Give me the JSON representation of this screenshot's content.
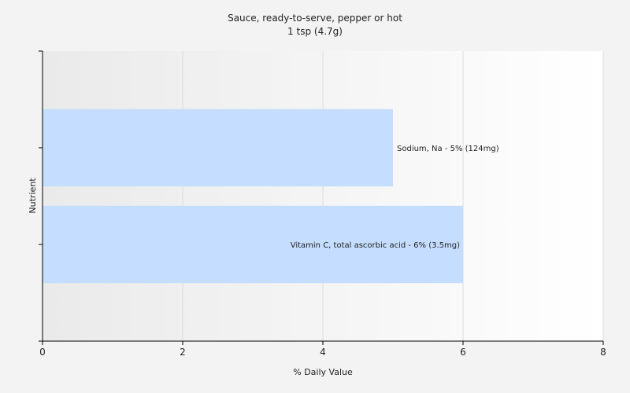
{
  "chart_data": {
    "type": "bar",
    "orientation": "horizontal",
    "title": "Sauce, ready-to-serve, pepper or hot",
    "subtitle": "1 tsp (4.7g)",
    "xlabel": "% Daily Value",
    "ylabel": "Nutrient",
    "xlim": [
      0,
      8
    ],
    "xticks": [
      "0",
      "2",
      "4",
      "6",
      "8"
    ],
    "grid": true,
    "categories": [
      "Sodium, Na",
      "Vitamin C, total ascorbic acid"
    ],
    "values": [
      5,
      6
    ],
    "labels": [
      "Sodium, Na - 5% (124mg)",
      "Vitamin C, total ascorbic acid - 6% (3.5mg)"
    ],
    "bar_color": "#c5deff"
  }
}
